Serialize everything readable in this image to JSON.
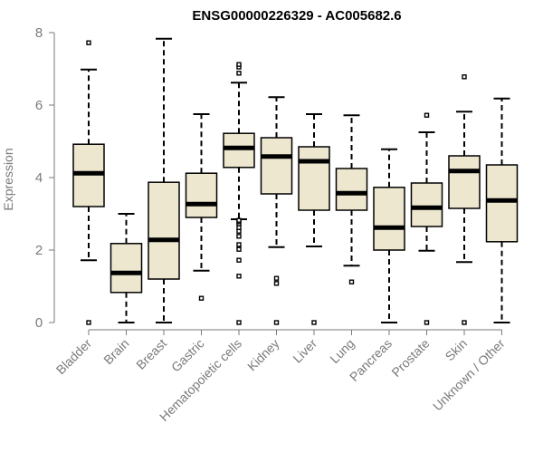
{
  "chart_data": {
    "type": "boxplot",
    "title": "ENSG00000226329 - AC005682.6",
    "xlabel": "",
    "ylabel": "Expression",
    "ylim": [
      0,
      8
    ],
    "yticks": [
      0,
      2,
      4,
      6,
      8
    ],
    "grid": false,
    "colors": {
      "box_fill": "#ede7cf",
      "stroke": "#000000",
      "axis": "#7a7a7a"
    },
    "categories": [
      "Bladder",
      "Brain",
      "Breast",
      "Gastric",
      "Hematopoietic cells",
      "Kidney",
      "Liver",
      "Lung",
      "Pancreas",
      "Prostate",
      "Skin",
      "Unknown / Other"
    ],
    "boxes": [
      {
        "q1": 3.2,
        "median": 4.12,
        "q3": 4.92,
        "whisker_low": 1.72,
        "whisker_high": 6.98,
        "outliers": [
          0.0,
          7.72
        ]
      },
      {
        "q1": 0.83,
        "median": 1.37,
        "q3": 2.18,
        "whisker_low": 0.0,
        "whisker_high": 3.0,
        "outliers": []
      },
      {
        "q1": 1.2,
        "median": 2.28,
        "q3": 3.87,
        "whisker_low": 0.0,
        "whisker_high": 7.83,
        "outliers": []
      },
      {
        "q1": 2.9,
        "median": 3.27,
        "q3": 4.12,
        "whisker_low": 1.43,
        "whisker_high": 5.75,
        "outliers": [
          0.67
        ]
      },
      {
        "q1": 4.28,
        "median": 4.82,
        "q3": 5.22,
        "whisker_low": 2.85,
        "whisker_high": 6.62,
        "outliers": [
          0.0,
          1.28,
          1.72,
          2.02,
          2.15,
          2.38,
          2.52,
          2.62,
          2.72,
          2.78,
          2.82,
          6.88,
          7.05,
          7.12
        ]
      },
      {
        "q1": 3.55,
        "median": 4.58,
        "q3": 5.1,
        "whisker_low": 2.08,
        "whisker_high": 6.22,
        "outliers": [
          0.0,
          1.08,
          1.22
        ]
      },
      {
        "q1": 3.1,
        "median": 4.45,
        "q3": 4.85,
        "whisker_low": 2.1,
        "whisker_high": 5.75,
        "outliers": [
          0.0
        ]
      },
      {
        "q1": 3.1,
        "median": 3.57,
        "q3": 4.25,
        "whisker_low": 1.57,
        "whisker_high": 5.72,
        "outliers": [
          1.12
        ]
      },
      {
        "q1": 2.0,
        "median": 2.62,
        "q3": 3.73,
        "whisker_low": 0.0,
        "whisker_high": 4.78,
        "outliers": []
      },
      {
        "q1": 2.65,
        "median": 3.17,
        "q3": 3.85,
        "whisker_low": 1.98,
        "whisker_high": 5.25,
        "outliers": [
          0.0,
          5.72
        ]
      },
      {
        "q1": 3.15,
        "median": 4.18,
        "q3": 4.6,
        "whisker_low": 1.67,
        "whisker_high": 5.82,
        "outliers": [
          0.0,
          6.78
        ]
      },
      {
        "q1": 2.23,
        "median": 3.37,
        "q3": 4.35,
        "whisker_low": 0.0,
        "whisker_high": 6.18,
        "outliers": []
      }
    ]
  }
}
